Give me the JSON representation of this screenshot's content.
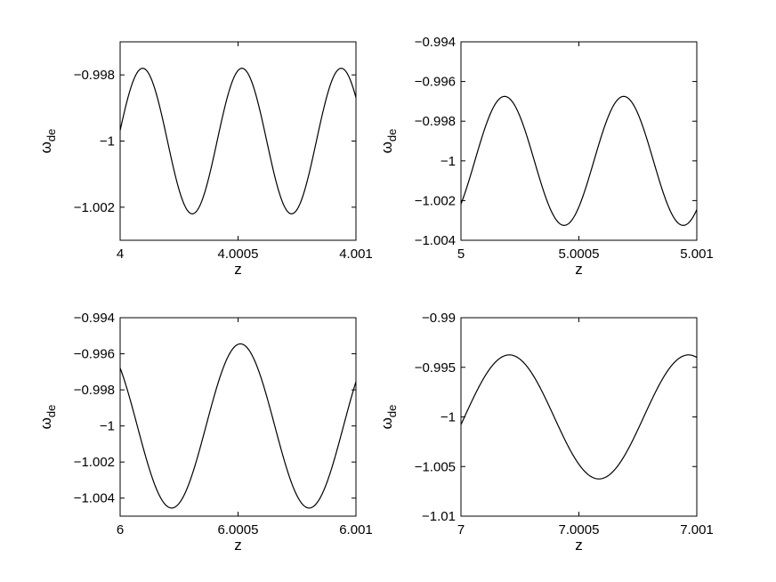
{
  "chart_data": [
    {
      "type": "line",
      "xlabel": "z",
      "ylabel": "ω",
      "ylabel_sub": "de",
      "xlim": [
        4,
        4.001
      ],
      "ylim": [
        -1.003,
        -0.997
      ],
      "xticks": [
        4,
        4.0005,
        4.001
      ],
      "xtick_labels": [
        "4",
        "4.0005",
        "4.001"
      ],
      "yticks": [
        -0.998,
        -1,
        -1.002
      ],
      "ytick_labels": [
        "−0.998",
        "−1",
        "−1.002"
      ],
      "grid": false,
      "series": [
        {
          "function": "sinusoid",
          "center": -1.0,
          "amplitude": 0.0022,
          "period": 0.000421,
          "peak_x": 4.0000955
        }
      ]
    },
    {
      "type": "line",
      "xlabel": "z",
      "ylabel": "ω",
      "ylabel_sub": "de",
      "xlim": [
        5,
        5.001
      ],
      "ylim": [
        -1.004,
        -0.994
      ],
      "xticks": [
        5,
        5.0005,
        5.001
      ],
      "xtick_labels": [
        "5",
        "5.0005",
        "5.001"
      ],
      "yticks": [
        -0.994,
        -0.996,
        -0.998,
        -1,
        -1.002,
        -1.004
      ],
      "ytick_labels": [
        "−0.994",
        "−0.996",
        "−0.998",
        "−1",
        "−1.002",
        "−1.004"
      ],
      "grid": false,
      "series": [
        {
          "function": "sinusoid",
          "center": -1.0,
          "amplitude": 0.00325,
          "period": 0.000505,
          "peak_x": 5.000185
        }
      ]
    },
    {
      "type": "line",
      "xlabel": "z",
      "ylabel": "ω",
      "ylabel_sub": "de",
      "xlim": [
        6,
        6.001
      ],
      "ylim": [
        -1.005,
        -0.994
      ],
      "xticks": [
        6,
        6.0005,
        6.001
      ],
      "xtick_labels": [
        "6",
        "6.0005",
        "6.001"
      ],
      "yticks": [
        -0.994,
        -0.996,
        -0.998,
        -1,
        -1.002,
        -1.004
      ],
      "ytick_labels": [
        "−0.994",
        "−0.996",
        "−0.998",
        "−1",
        "−1.002",
        "−1.004"
      ],
      "grid": false,
      "series": [
        {
          "function": "sinusoid",
          "center": -1.0,
          "amplitude": 0.00455,
          "period": 0.000583,
          "peak_x": 6.00051
        }
      ]
    },
    {
      "type": "line",
      "xlabel": "z",
      "ylabel": "ω",
      "ylabel_sub": "de",
      "xlim": [
        7,
        7.001
      ],
      "ylim": [
        -1.01,
        -0.99
      ],
      "xticks": [
        7,
        7.0005,
        7.001
      ],
      "xtick_labels": [
        "7",
        "7.0005",
        "7.001"
      ],
      "yticks": [
        -0.99,
        -0.995,
        -1,
        -1.005,
        -1.01
      ],
      "ytick_labels": [
        "−0.99",
        "−0.995",
        "−1",
        "−1.005",
        "−1.01"
      ],
      "grid": false,
      "series": [
        {
          "function": "sinusoid",
          "center": -1.0,
          "amplitude": 0.00625,
          "period": 0.00076,
          "peak_x": 7.000205
        }
      ]
    }
  ]
}
